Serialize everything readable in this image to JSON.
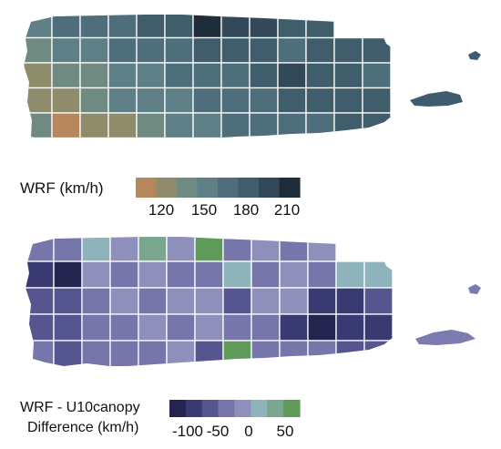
{
  "map_top": {
    "legend_title": "WRF (km/h)",
    "legend_ticks": [
      "120",
      "150",
      "180",
      "210"
    ],
    "legend_colors": [
      "#b6875c",
      "#8f8c6c",
      "#6f8a80",
      "#5e7f86",
      "#4e6e7c",
      "#405d6c",
      "#33495a",
      "#1f2c3a"
    ],
    "grid": [
      [
        3,
        4,
        4,
        4,
        5,
        5,
        7,
        6,
        6,
        5,
        5,
        -1,
        -1
      ],
      [
        2,
        3,
        3,
        4,
        4,
        4,
        5,
        5,
        5,
        4,
        5,
        5,
        5
      ],
      [
        1,
        2,
        2,
        3,
        3,
        4,
        4,
        4,
        5,
        6,
        5,
        5,
        4
      ],
      [
        1,
        1,
        2,
        3,
        3,
        3,
        4,
        4,
        4,
        5,
        5,
        5,
        5
      ],
      [
        2,
        0,
        1,
        1,
        2,
        3,
        3,
        4,
        4,
        4,
        4,
        5,
        5
      ]
    ],
    "islet_color": "#3e5c6e"
  },
  "map_bottom": {
    "legend_title": "WRF - U10canopy",
    "legend_title_sub": "Difference (km/h)",
    "legend_ticks": [
      "-100",
      "-50",
      "0",
      "50"
    ],
    "legend_colors": [
      "#24244e",
      "#3a3a72",
      "#55558f",
      "#7676aa",
      "#8f8fbc",
      "#8fb3bb",
      "#7aa58f",
      "#5f9a58"
    ],
    "grid": [
      [
        3,
        3,
        5,
        4,
        6,
        4,
        7,
        3,
        4,
        3,
        4,
        -1,
        -1
      ],
      [
        1,
        0,
        4,
        3,
        4,
        3,
        3,
        5,
        3,
        4,
        3,
        5,
        5
      ],
      [
        2,
        2,
        3,
        4,
        3,
        4,
        4,
        2,
        4,
        4,
        1,
        1,
        2
      ],
      [
        2,
        2,
        3,
        3,
        4,
        3,
        4,
        3,
        3,
        1,
        0,
        1,
        1
      ],
      [
        3,
        2,
        3,
        3,
        3,
        4,
        2,
        7,
        3,
        3,
        3,
        2,
        2
      ]
    ],
    "islet_color": "#7b7bb0"
  }
}
